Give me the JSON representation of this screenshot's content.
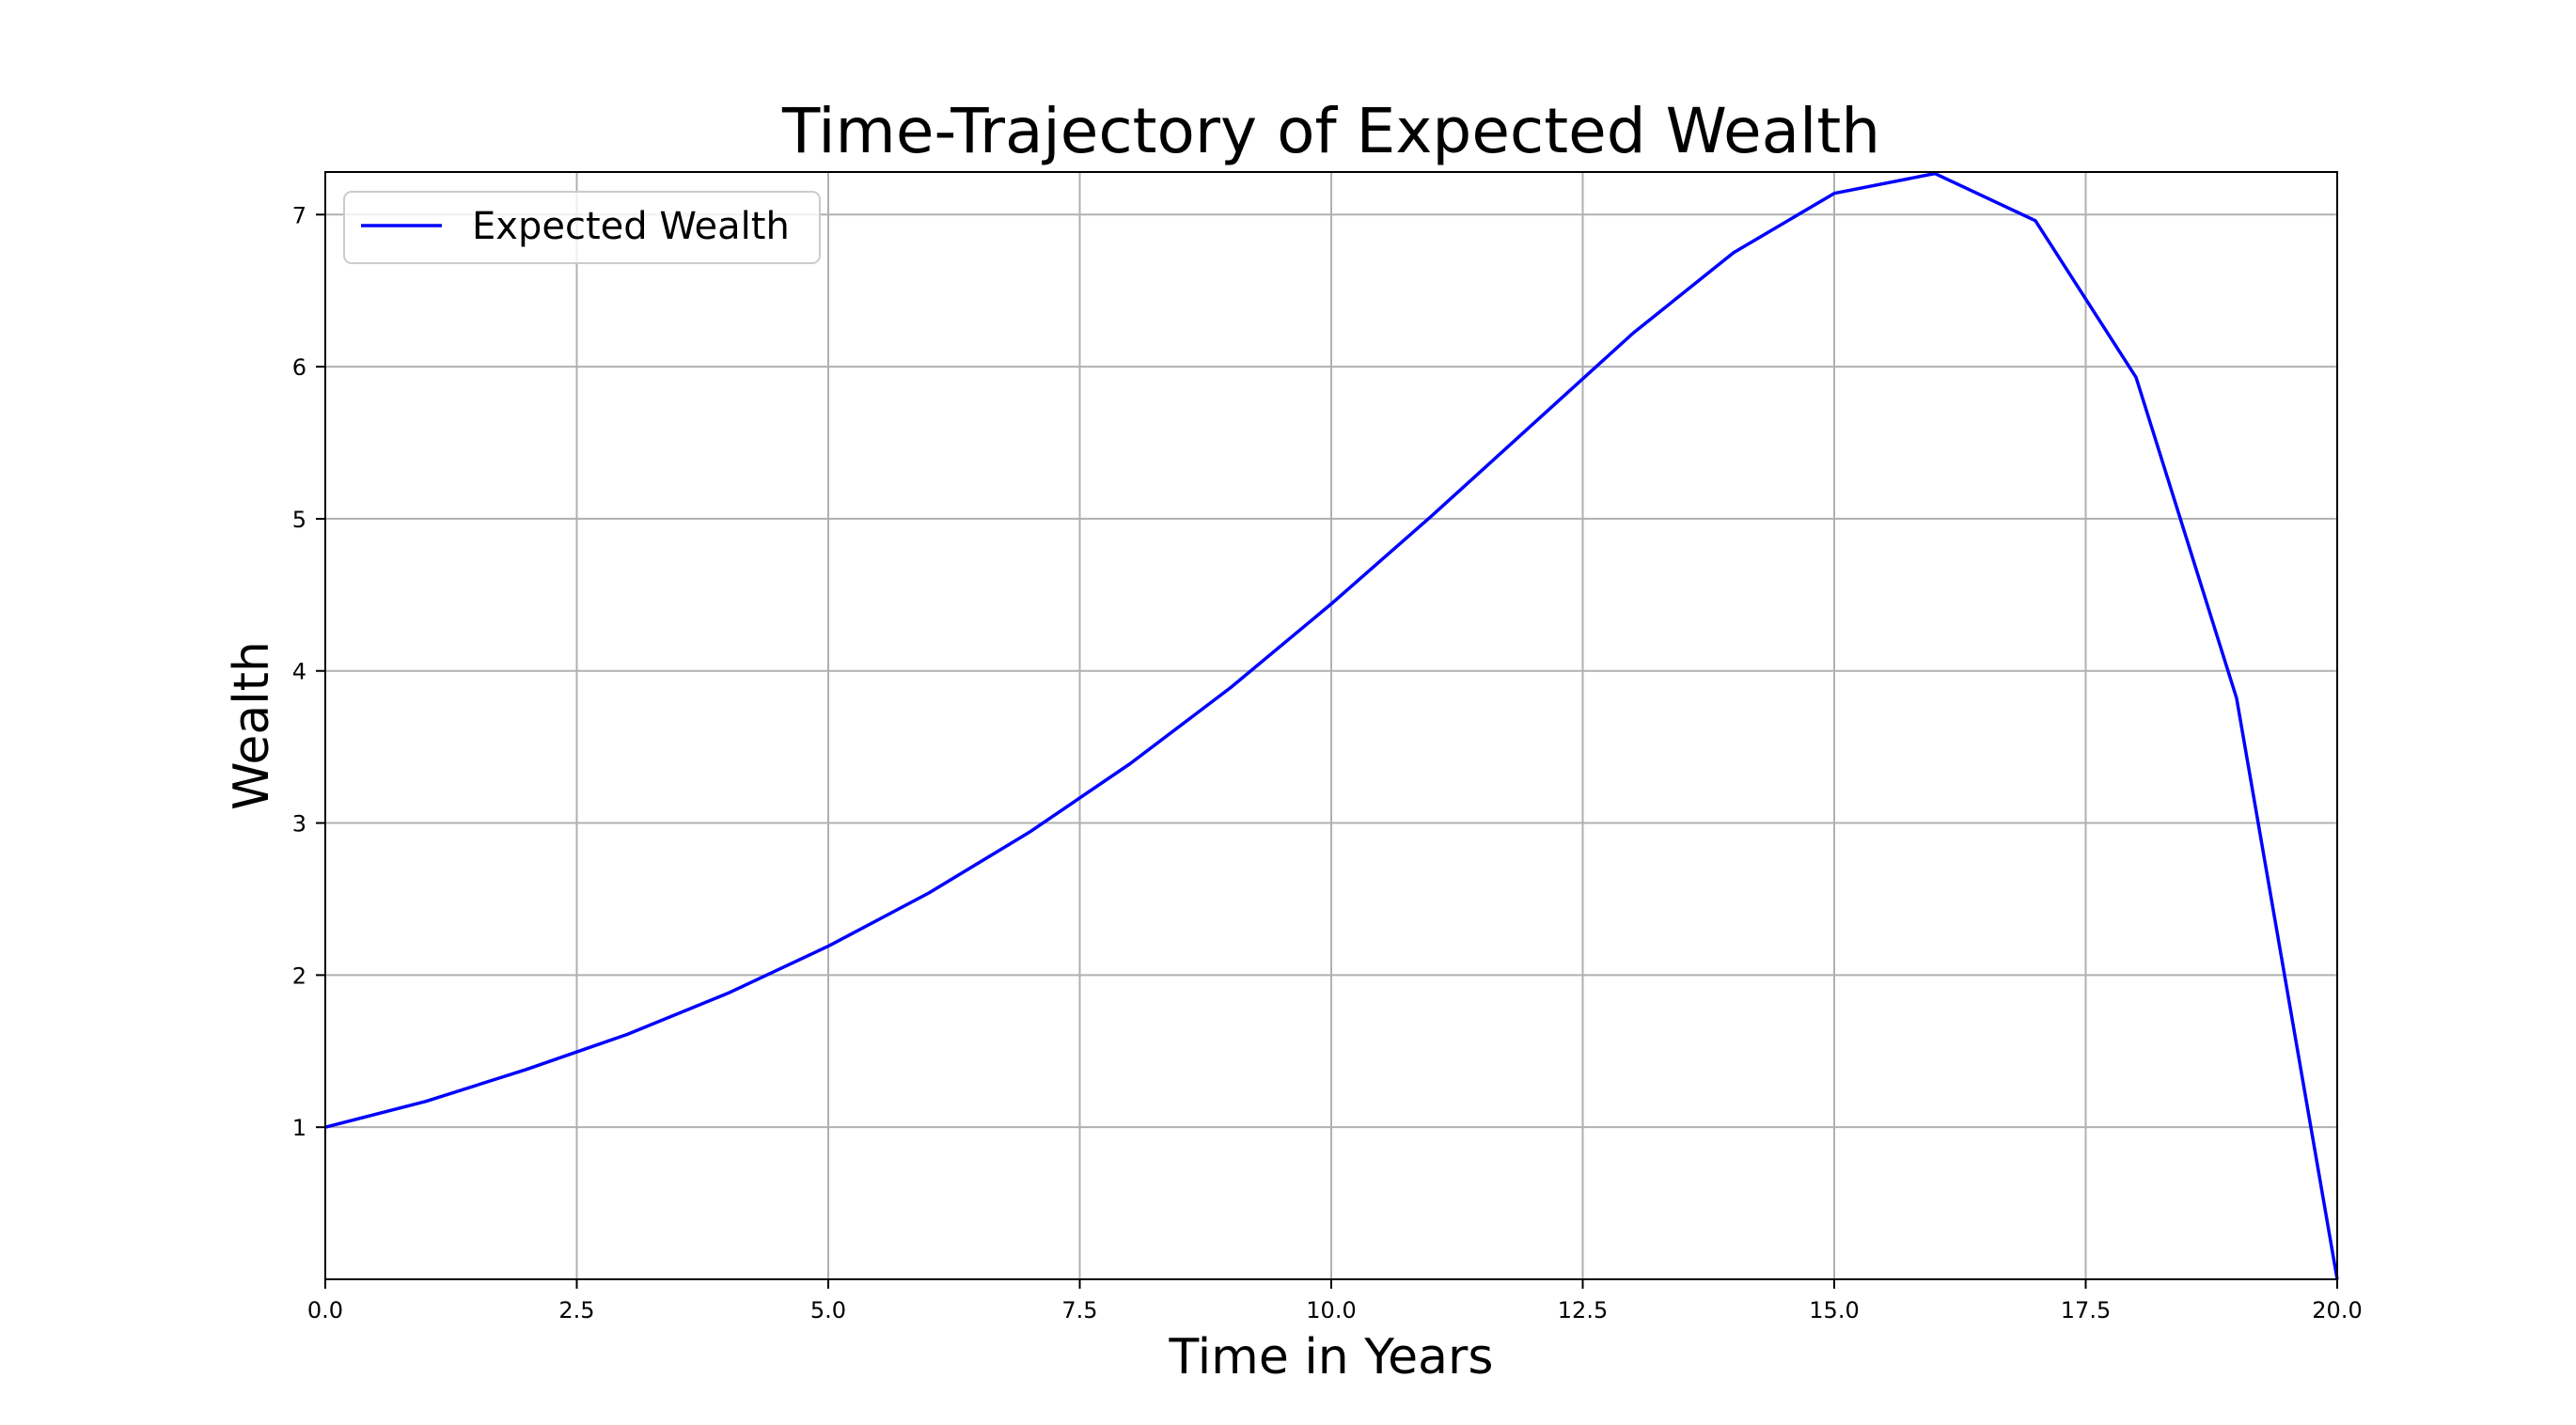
{
  "chart_data": {
    "type": "line",
    "title": "Time-Trajectory of Expected Wealth",
    "xlabel": "Time in Years",
    "ylabel": "Wealth",
    "xlim": [
      0,
      20
    ],
    "ylim": [
      0,
      7.28
    ],
    "xticks": [
      0,
      2.5,
      5,
      7.5,
      10,
      12.5,
      15,
      17.5,
      20
    ],
    "xtick_labels": [
      "0.0",
      "2.5",
      "5.0",
      "7.5",
      "10.0",
      "12.5",
      "15.0",
      "17.5",
      "20.0"
    ],
    "yticks": [
      1,
      2,
      3,
      4,
      5,
      6,
      7
    ],
    "ytick_labels": [
      "1",
      "2",
      "3",
      "4",
      "5",
      "6",
      "7"
    ],
    "grid": true,
    "legend": "upper-left",
    "series": [
      {
        "name": "Expected Wealth",
        "color": "#0000ff",
        "x": [
          0,
          1,
          2,
          3,
          4,
          5,
          6,
          7,
          8,
          9,
          10,
          11,
          12,
          13,
          14,
          15,
          16,
          17,
          18,
          19,
          20
        ],
        "y": [
          1.0,
          1.17,
          1.38,
          1.61,
          1.88,
          2.19,
          2.54,
          2.94,
          3.39,
          3.89,
          4.44,
          5.02,
          5.62,
          6.22,
          6.75,
          7.14,
          7.27,
          6.96,
          5.93,
          3.82,
          0.0
        ]
      }
    ]
  }
}
